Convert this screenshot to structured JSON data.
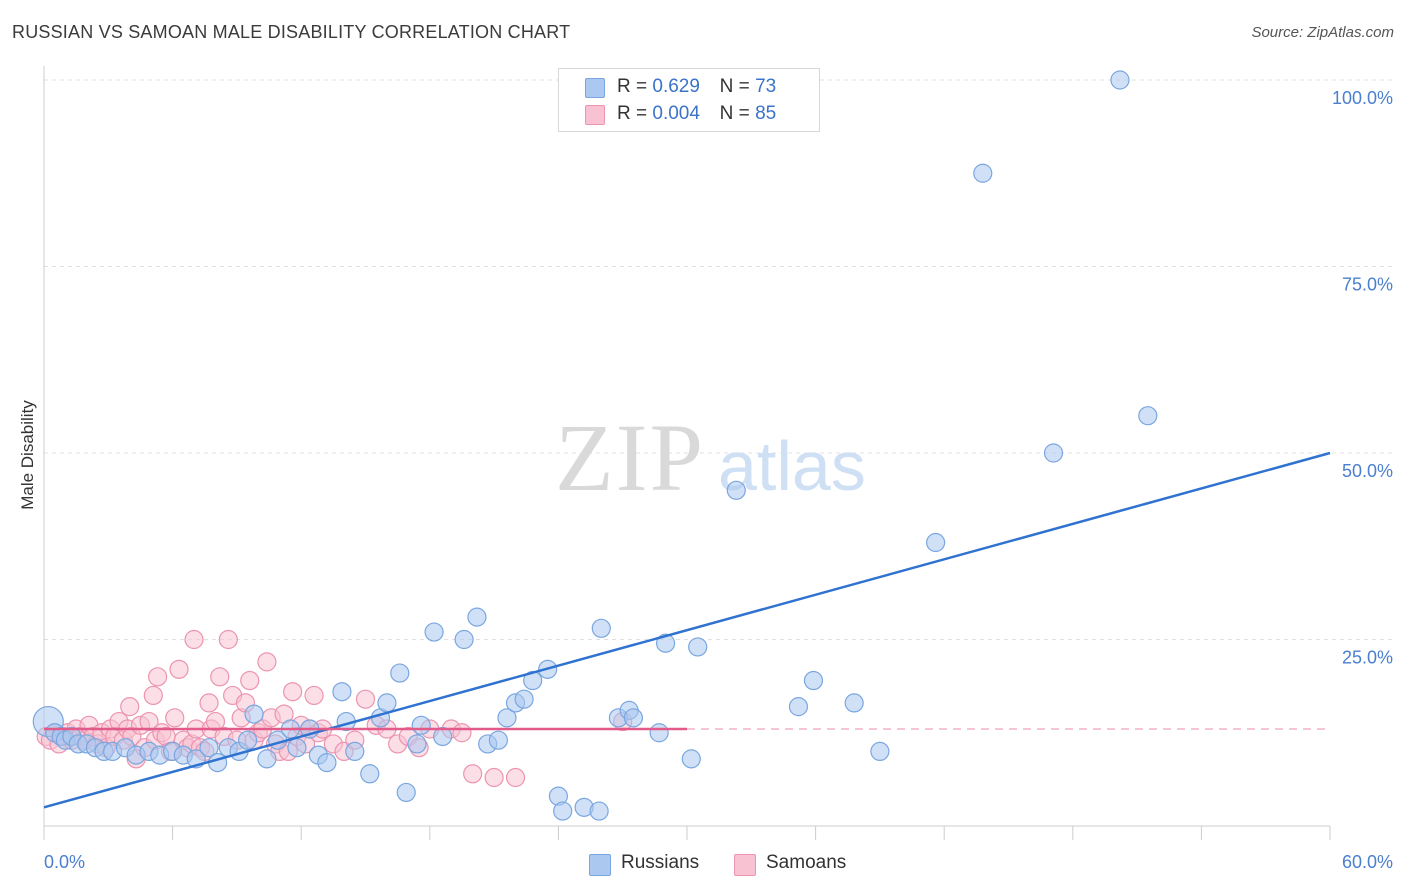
{
  "header": {
    "title": "RUSSIAN VS SAMOAN MALE DISABILITY CORRELATION CHART",
    "source": "Source: ZipAtlas.com"
  },
  "watermark": {
    "zip": "ZIP",
    "atlas": "atlas"
  },
  "legend": {
    "rows": [
      {
        "r_label": "R =",
        "r_value": "0.629",
        "n_label": "N =",
        "n_value": "73",
        "color": "#aac8f0",
        "stroke": "#7aa6e0"
      },
      {
        "r_label": "R =",
        "r_value": "0.004",
        "n_label": "N =",
        "n_value": "85",
        "color": "#f8c2d2",
        "stroke": "#ec94b0"
      }
    ]
  },
  "bottom_legend": [
    {
      "label": "Russians",
      "color": "#aac8f0",
      "stroke": "#7aa6e0"
    },
    {
      "label": "Samoans",
      "color": "#f8c2d2",
      "stroke": "#ec94b0"
    }
  ],
  "chart_data": {
    "type": "scatter",
    "title": "RUSSIAN VS SAMOAN MALE DISABILITY CORRELATION CHART",
    "xlabel": "",
    "ylabel": "Male Disability",
    "xlim": [
      0,
      60
    ],
    "ylim": [
      0,
      100
    ],
    "x_ticks": [
      "0.0%",
      "60.0%"
    ],
    "y_ticks": [
      {
        "value": 25,
        "label": "25.0%"
      },
      {
        "value": 50,
        "label": "50.0%"
      },
      {
        "value": 75,
        "label": "75.0%"
      },
      {
        "value": 100,
        "label": "100.0%"
      }
    ],
    "grid": true,
    "legend_placement": "top-center",
    "series": [
      {
        "name": "Russians",
        "color": "#aac8f0",
        "stroke": "#7aa6e0",
        "trend": {
          "x": [
            0,
            60
          ],
          "y": [
            2.5,
            50
          ],
          "color": "#2f72d0"
        },
        "points": [
          [
            0.2,
            14
          ],
          [
            0.5,
            12.5
          ],
          [
            0.8,
            12
          ],
          [
            1.0,
            11.5
          ],
          [
            1.3,
            12
          ],
          [
            1.6,
            11
          ],
          [
            2.0,
            11
          ],
          [
            2.4,
            10.5
          ],
          [
            2.8,
            10
          ],
          [
            3.2,
            10
          ],
          [
            3.8,
            10.5
          ],
          [
            4.3,
            9.5
          ],
          [
            4.9,
            10
          ],
          [
            5.4,
            9.5
          ],
          [
            6.0,
            10
          ],
          [
            6.5,
            9.5
          ],
          [
            7.1,
            9
          ],
          [
            7.7,
            10.5
          ],
          [
            8.1,
            8.5
          ],
          [
            8.6,
            10.5
          ],
          [
            9.1,
            10
          ],
          [
            9.5,
            11.5
          ],
          [
            9.8,
            15
          ],
          [
            10.4,
            9
          ],
          [
            10.9,
            11.5
          ],
          [
            11.5,
            13
          ],
          [
            11.8,
            10.5
          ],
          [
            12.4,
            13
          ],
          [
            12.8,
            9.5
          ],
          [
            13.2,
            8.5
          ],
          [
            13.9,
            18
          ],
          [
            14.1,
            14
          ],
          [
            14.5,
            10
          ],
          [
            15.2,
            7
          ],
          [
            15.7,
            14.5
          ],
          [
            16.0,
            16.5
          ],
          [
            16.6,
            20.5
          ],
          [
            16.9,
            4.5
          ],
          [
            17.4,
            11
          ],
          [
            17.6,
            13.5
          ],
          [
            18.2,
            26
          ],
          [
            18.6,
            12
          ],
          [
            19.6,
            25
          ],
          [
            20.2,
            28
          ],
          [
            20.7,
            11
          ],
          [
            21.2,
            11.5
          ],
          [
            21.6,
            14.5
          ],
          [
            22.0,
            16.5
          ],
          [
            22.4,
            17
          ],
          [
            22.8,
            19.5
          ],
          [
            23.5,
            21
          ],
          [
            24.0,
            4
          ],
          [
            24.2,
            2
          ],
          [
            25.2,
            2.5
          ],
          [
            25.9,
            2
          ],
          [
            26.0,
            26.5
          ],
          [
            26.8,
            14.5
          ],
          [
            27.3,
            15.5
          ],
          [
            27.5,
            14.5
          ],
          [
            28.7,
            12.5
          ],
          [
            29.0,
            24.5
          ],
          [
            30.2,
            9
          ],
          [
            30.5,
            24
          ],
          [
            32.3,
            45
          ],
          [
            35.2,
            16
          ],
          [
            35.9,
            19.5
          ],
          [
            37.8,
            16.5
          ],
          [
            39.0,
            10
          ],
          [
            41.6,
            38
          ],
          [
            43.8,
            87.5
          ],
          [
            47.1,
            50
          ],
          [
            50.2,
            100
          ],
          [
            51.5,
            55
          ]
        ]
      },
      {
        "name": "Samoans",
        "color": "#f8c2d2",
        "stroke": "#ec94b0",
        "trend": {
          "x": [
            0,
            30
          ],
          "y": [
            13,
            13
          ],
          "x_dashed": [
            30,
            60
          ],
          "color": "#e25a8a"
        },
        "points": [
          [
            0.1,
            12
          ],
          [
            0.3,
            11.5
          ],
          [
            0.5,
            12.5
          ],
          [
            0.7,
            11
          ],
          [
            0.9,
            12
          ],
          [
            1.1,
            12.5
          ],
          [
            1.3,
            11.5
          ],
          [
            1.5,
            13
          ],
          [
            1.7,
            12
          ],
          [
            1.9,
            11.5
          ],
          [
            2.1,
            13.5
          ],
          [
            2.3,
            12
          ],
          [
            2.5,
            11
          ],
          [
            2.7,
            12.5
          ],
          [
            2.9,
            10.5
          ],
          [
            3.1,
            13
          ],
          [
            3.3,
            12
          ],
          [
            3.5,
            14
          ],
          [
            3.7,
            11.5
          ],
          [
            3.9,
            13
          ],
          [
            4.0,
            16
          ],
          [
            4.1,
            12
          ],
          [
            4.3,
            9
          ],
          [
            4.5,
            13.5
          ],
          [
            4.7,
            10.5
          ],
          [
            4.9,
            14
          ],
          [
            5.1,
            17.5
          ],
          [
            5.2,
            11.5
          ],
          [
            5.3,
            20
          ],
          [
            5.5,
            12.5
          ],
          [
            5.7,
            12
          ],
          [
            5.9,
            10
          ],
          [
            6.1,
            14.5
          ],
          [
            6.3,
            21
          ],
          [
            6.5,
            11.5
          ],
          [
            6.7,
            10.5
          ],
          [
            6.9,
            11
          ],
          [
            7.1,
            13
          ],
          [
            7.3,
            10.5
          ],
          [
            7.5,
            10
          ],
          [
            7.0,
            25
          ],
          [
            7.7,
            16.5
          ],
          [
            7.8,
            13
          ],
          [
            8.0,
            14
          ],
          [
            8.2,
            20
          ],
          [
            8.4,
            12
          ],
          [
            8.6,
            25
          ],
          [
            8.8,
            17.5
          ],
          [
            9.0,
            11.5
          ],
          [
            9.2,
            14.5
          ],
          [
            9.4,
            16.5
          ],
          [
            9.6,
            19.5
          ],
          [
            9.8,
            11.5
          ],
          [
            10.0,
            12.5
          ],
          [
            10.2,
            13
          ],
          [
            10.4,
            22
          ],
          [
            10.6,
            14.5
          ],
          [
            10.8,
            11
          ],
          [
            11.0,
            10
          ],
          [
            11.2,
            15
          ],
          [
            11.4,
            10
          ],
          [
            11.6,
            18
          ],
          [
            11.8,
            12
          ],
          [
            12.0,
            13.5
          ],
          [
            12.2,
            11
          ],
          [
            12.4,
            13
          ],
          [
            12.6,
            17.5
          ],
          [
            12.8,
            12.5
          ],
          [
            13.0,
            13
          ],
          [
            13.5,
            11
          ],
          [
            14.0,
            10
          ],
          [
            14.5,
            11.5
          ],
          [
            15.0,
            17
          ],
          [
            15.5,
            13.5
          ],
          [
            16.0,
            13
          ],
          [
            16.5,
            11
          ],
          [
            17.0,
            12
          ],
          [
            17.5,
            10.5
          ],
          [
            18.0,
            13
          ],
          [
            19.0,
            13
          ],
          [
            19.5,
            12.5
          ],
          [
            20.0,
            7
          ],
          [
            21.0,
            6.5
          ],
          [
            22.0,
            6.5
          ],
          [
            27.0,
            14
          ]
        ]
      }
    ]
  }
}
